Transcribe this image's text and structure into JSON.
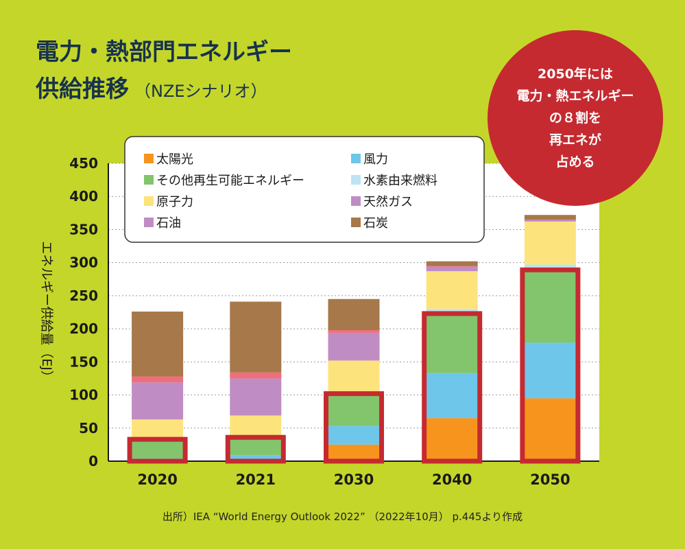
{
  "title": {
    "line1": "電力・熱部門エネルギー",
    "line2": "供給推移",
    "subtitle": "（NZEシナリオ）"
  },
  "badge": {
    "text": "2050年には\n電力・熱エネルギー\nの８割を\n再エネが\n占める"
  },
  "source": "出所）IEA “World Energy Outlook 2022” （2022年10月） p.445より作成",
  "colors": {
    "background": "#c4d62a",
    "plot_bg": "#ffffff",
    "highlight_border": "#c52a30",
    "title": "#17324d"
  },
  "chart_data": {
    "type": "bar",
    "stacked": true,
    "categories": [
      "2020",
      "2021",
      "2030",
      "2040",
      "2050"
    ],
    "ylabel": "エネルギー供給量（EJ）",
    "ylim": [
      0,
      450
    ],
    "yticks": [
      0,
      50,
      100,
      150,
      200,
      250,
      300,
      350,
      400,
      450
    ],
    "grid": true,
    "legend_position": "top-left",
    "series": [
      {
        "name": "太陽光",
        "color": "#f7941d",
        "values": [
          1,
          2,
          25,
          65,
          95
        ]
      },
      {
        "name": "風力",
        "color": "#6ec6ea",
        "values": [
          3,
          7,
          28,
          68,
          84
        ]
      },
      {
        "name": "その他再生可能エネルギー",
        "color": "#82c56c",
        "values": [
          29,
          27,
          49,
          90,
          110
        ]
      },
      {
        "name": "水素由来燃料",
        "color": "#bde3f4",
        "values": [
          0,
          0,
          0,
          7,
          8
        ]
      },
      {
        "name": "原子力",
        "color": "#fde37c",
        "values": [
          30,
          33,
          50,
          57,
          65
        ]
      },
      {
        "name": "天然ガス",
        "color": "#c08cc4",
        "values": [
          0,
          0,
          0,
          0,
          0
        ]
      },
      {
        "name": "石油",
        "color": "#c08cc4",
        "values": [
          56,
          56,
          42,
          7,
          3
        ]
      },
      {
        "name": "",
        "color": "#ef6e7b",
        "values": [
          9,
          9,
          4,
          1,
          0
        ]
      },
      {
        "name": "石炭",
        "color": "#a6784a",
        "values": [
          98,
          107,
          47,
          7,
          7
        ]
      }
    ],
    "renewable_highlight_values": [
      33,
      36,
      102,
      223,
      289
    ]
  }
}
